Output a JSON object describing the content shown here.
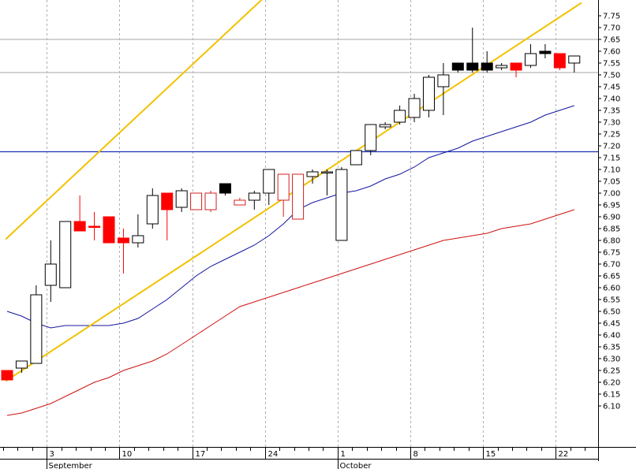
{
  "chart_data": {
    "type": "candlestick",
    "title": "",
    "xlabel": "",
    "ylabel": "",
    "ylim": [
      6.07,
      7.8
    ],
    "grid": true,
    "y_ticks": [
      "6.10",
      "6.15",
      "6.20",
      "6.25",
      "6.30",
      "6.35",
      "6.40",
      "6.45",
      "6.50",
      "6.55",
      "6.60",
      "6.65",
      "6.70",
      "6.75",
      "6.80",
      "6.85",
      "6.90",
      "6.95",
      "7.00",
      "7.05",
      "7.10",
      "7.15",
      "7.20",
      "7.25",
      "7.30",
      "7.35",
      "7.40",
      "7.45",
      "7.50",
      "7.55",
      "7.60",
      "7.65",
      "7.70",
      "7.75"
    ],
    "x_day_labels": [
      {
        "i": 3,
        "label": "3"
      },
      {
        "i": 8,
        "label": "10"
      },
      {
        "i": 13,
        "label": "17"
      },
      {
        "i": 18,
        "label": "24"
      },
      {
        "i": 23,
        "label": "1"
      },
      {
        "i": 28,
        "label": "8"
      },
      {
        "i": 33,
        "label": "15"
      },
      {
        "i": 38,
        "label": "22"
      }
    ],
    "month_labels": [
      {
        "i": 3,
        "label": "September"
      },
      {
        "i": 23,
        "label": "October"
      }
    ],
    "candles": [
      {
        "i": 0,
        "o": 6.25,
        "h": 6.25,
        "l": 6.21,
        "c": 6.21,
        "color": "red"
      },
      {
        "i": 1,
        "o": 6.26,
        "h": 6.29,
        "l": 6.24,
        "c": 6.29,
        "color": "white"
      },
      {
        "i": 2,
        "o": 6.28,
        "h": 6.61,
        "l": 6.28,
        "c": 6.57,
        "color": "white"
      },
      {
        "i": 3,
        "o": 6.61,
        "h": 6.8,
        "l": 6.54,
        "c": 6.7,
        "color": "white"
      },
      {
        "i": 4,
        "o": 6.6,
        "h": 6.88,
        "l": 6.6,
        "c": 6.88,
        "color": "white"
      },
      {
        "i": 5,
        "o": 6.88,
        "h": 6.99,
        "l": 6.84,
        "c": 6.84,
        "color": "red"
      },
      {
        "i": 6,
        "o": 6.86,
        "h": 6.92,
        "l": 6.8,
        "c": 6.86,
        "color": "red"
      },
      {
        "i": 7,
        "o": 6.9,
        "h": 6.9,
        "l": 6.79,
        "c": 6.79,
        "color": "red"
      },
      {
        "i": 8,
        "o": 6.81,
        "h": 6.85,
        "l": 6.66,
        "c": 6.79,
        "color": "red"
      },
      {
        "i": 9,
        "o": 6.79,
        "h": 6.91,
        "l": 6.77,
        "c": 6.82,
        "color": "white"
      },
      {
        "i": 10,
        "o": 6.87,
        "h": 7.02,
        "l": 6.85,
        "c": 6.99,
        "color": "white"
      },
      {
        "i": 11,
        "o": 7.0,
        "h": 7.0,
        "l": 6.8,
        "c": 6.93,
        "color": "red"
      },
      {
        "i": 12,
        "o": 6.94,
        "h": 7.02,
        "l": 6.92,
        "c": 7.01,
        "color": "white"
      },
      {
        "i": 13,
        "o": 7.0,
        "h": 7.0,
        "l": 6.93,
        "c": 6.93,
        "color": "red-hollow"
      },
      {
        "i": 14,
        "o": 7.0,
        "h": 7.01,
        "l": 6.92,
        "c": 6.93,
        "color": "red-hollow"
      },
      {
        "i": 15,
        "o": 7.04,
        "h": 7.04,
        "l": 6.99,
        "c": 7.0,
        "color": "black"
      },
      {
        "i": 16,
        "o": 6.97,
        "h": 6.98,
        "l": 6.95,
        "c": 6.95,
        "color": "red-hollow"
      },
      {
        "i": 17,
        "o": 6.97,
        "h": 7.01,
        "l": 6.93,
        "c": 7.0,
        "color": "white"
      },
      {
        "i": 18,
        "o": 7.0,
        "h": 7.1,
        "l": 6.95,
        "c": 7.1,
        "color": "white"
      },
      {
        "i": 19,
        "o": 7.08,
        "h": 7.08,
        "l": 6.9,
        "c": 6.97,
        "color": "red-hollow"
      },
      {
        "i": 20,
        "o": 7.08,
        "h": 7.08,
        "l": 6.89,
        "c": 6.89,
        "color": "red-hollow"
      },
      {
        "i": 21,
        "o": 7.07,
        "h": 7.1,
        "l": 7.04,
        "c": 7.09,
        "color": "white"
      },
      {
        "i": 22,
        "o": 7.09,
        "h": 7.1,
        "l": 6.99,
        "c": 7.09,
        "color": "white"
      },
      {
        "i": 23,
        "o": 6.8,
        "h": 7.11,
        "l": 6.8,
        "c": 7.1,
        "color": "white"
      },
      {
        "i": 24,
        "o": 7.12,
        "h": 7.18,
        "l": 7.12,
        "c": 7.18,
        "color": "white"
      },
      {
        "i": 25,
        "o": 7.18,
        "h": 7.29,
        "l": 7.16,
        "c": 7.29,
        "color": "white"
      },
      {
        "i": 26,
        "o": 7.28,
        "h": 7.3,
        "l": 7.27,
        "c": 7.29,
        "color": "white"
      },
      {
        "i": 27,
        "o": 7.3,
        "h": 7.37,
        "l": 7.29,
        "c": 7.35,
        "color": "white"
      },
      {
        "i": 28,
        "o": 7.32,
        "h": 7.42,
        "l": 7.3,
        "c": 7.4,
        "color": "white"
      },
      {
        "i": 29,
        "o": 7.35,
        "h": 7.5,
        "l": 7.32,
        "c": 7.49,
        "color": "white"
      },
      {
        "i": 30,
        "o": 7.45,
        "h": 7.55,
        "l": 7.33,
        "c": 7.5,
        "color": "white"
      },
      {
        "i": 31,
        "o": 7.55,
        "h": 7.55,
        "l": 7.51,
        "c": 7.52,
        "color": "black"
      },
      {
        "i": 32,
        "o": 7.55,
        "h": 7.7,
        "l": 7.51,
        "c": 7.52,
        "color": "black"
      },
      {
        "i": 33,
        "o": 7.55,
        "h": 7.6,
        "l": 7.51,
        "c": 7.52,
        "color": "black"
      },
      {
        "i": 34,
        "o": 7.53,
        "h": 7.55,
        "l": 7.52,
        "c": 7.54,
        "color": "white"
      },
      {
        "i": 35,
        "o": 7.55,
        "h": 7.55,
        "l": 7.49,
        "c": 7.52,
        "color": "red"
      },
      {
        "i": 36,
        "o": 7.54,
        "h": 7.63,
        "l": 7.53,
        "c": 7.59,
        "color": "white"
      },
      {
        "i": 37,
        "o": 7.6,
        "h": 7.63,
        "l": 7.57,
        "c": 7.59,
        "color": "black"
      },
      {
        "i": 38,
        "o": 7.59,
        "h": 7.59,
        "l": 7.52,
        "c": 7.53,
        "color": "red"
      },
      {
        "i": 39,
        "o": 7.55,
        "h": 7.58,
        "l": 7.51,
        "c": 7.58,
        "color": "white"
      }
    ],
    "blue_ma": [
      [
        0,
        6.5
      ],
      [
        1,
        6.48
      ],
      [
        2,
        6.45
      ],
      [
        3,
        6.43
      ],
      [
        4,
        6.44
      ],
      [
        5,
        6.44
      ],
      [
        6,
        6.44
      ],
      [
        7,
        6.44
      ],
      [
        8,
        6.45
      ],
      [
        9,
        6.47
      ],
      [
        10,
        6.51
      ],
      [
        11,
        6.55
      ],
      [
        12,
        6.6
      ],
      [
        13,
        6.65
      ],
      [
        14,
        6.69
      ],
      [
        15,
        6.72
      ],
      [
        16,
        6.75
      ],
      [
        17,
        6.78
      ],
      [
        18,
        6.82
      ],
      [
        19,
        6.87
      ],
      [
        20,
        6.93
      ],
      [
        21,
        6.96
      ],
      [
        22,
        6.98
      ],
      [
        23,
        7.0
      ],
      [
        24,
        7.01
      ],
      [
        25,
        7.03
      ],
      [
        26,
        7.06
      ],
      [
        27,
        7.08
      ],
      [
        28,
        7.11
      ],
      [
        29,
        7.15
      ],
      [
        30,
        7.17
      ],
      [
        31,
        7.19
      ],
      [
        32,
        7.22
      ],
      [
        33,
        7.24
      ],
      [
        34,
        7.26
      ],
      [
        35,
        7.28
      ],
      [
        36,
        7.3
      ],
      [
        37,
        7.33
      ],
      [
        38,
        7.35
      ],
      [
        39,
        7.37
      ]
    ],
    "red_ma": [
      [
        0,
        6.06
      ],
      [
        1,
        6.07
      ],
      [
        2,
        6.09
      ],
      [
        3,
        6.11
      ],
      [
        4,
        6.14
      ],
      [
        5,
        6.17
      ],
      [
        6,
        6.2
      ],
      [
        7,
        6.22
      ],
      [
        8,
        6.25
      ],
      [
        9,
        6.27
      ],
      [
        10,
        6.29
      ],
      [
        11,
        6.32
      ],
      [
        12,
        6.36
      ],
      [
        13,
        6.4
      ],
      [
        14,
        6.44
      ],
      [
        15,
        6.48
      ],
      [
        16,
        6.52
      ],
      [
        17,
        6.54
      ],
      [
        18,
        6.56
      ],
      [
        19,
        6.58
      ],
      [
        20,
        6.6
      ],
      [
        21,
        6.62
      ],
      [
        22,
        6.64
      ],
      [
        23,
        6.66
      ],
      [
        24,
        6.68
      ],
      [
        25,
        6.7
      ],
      [
        26,
        6.72
      ],
      [
        27,
        6.74
      ],
      [
        28,
        6.76
      ],
      [
        29,
        6.78
      ],
      [
        30,
        6.8
      ],
      [
        31,
        6.81
      ],
      [
        32,
        6.82
      ],
      [
        33,
        6.83
      ],
      [
        34,
        6.85
      ],
      [
        35,
        6.86
      ],
      [
        36,
        6.87
      ],
      [
        37,
        6.89
      ],
      [
        38,
        6.91
      ],
      [
        39,
        6.93
      ]
    ],
    "horizontal_lines": [
      {
        "y": 7.65,
        "color": "#b8b8b8"
      },
      {
        "y": 7.51,
        "color": "#b8b8b8"
      },
      {
        "y": 7.175,
        "color": "#1d2fb8"
      }
    ],
    "trend_lines": [
      {
        "x1": -0.1,
        "y1": 6.805,
        "x2": 18.5,
        "y2": 7.875,
        "color": "#f2c200"
      },
      {
        "x1": -0.1,
        "y1": 6.205,
        "x2": 39.5,
        "y2": 7.805,
        "color": "#f2c200"
      }
    ],
    "colors": {
      "up_body": "#ffffff",
      "black_body": "#000000",
      "red_body": "#ff0000",
      "red_hollow": "#d02020",
      "blue_ma": "#1414a0",
      "red_ma": "#d01010",
      "grid": "#b0b0b0"
    }
  }
}
